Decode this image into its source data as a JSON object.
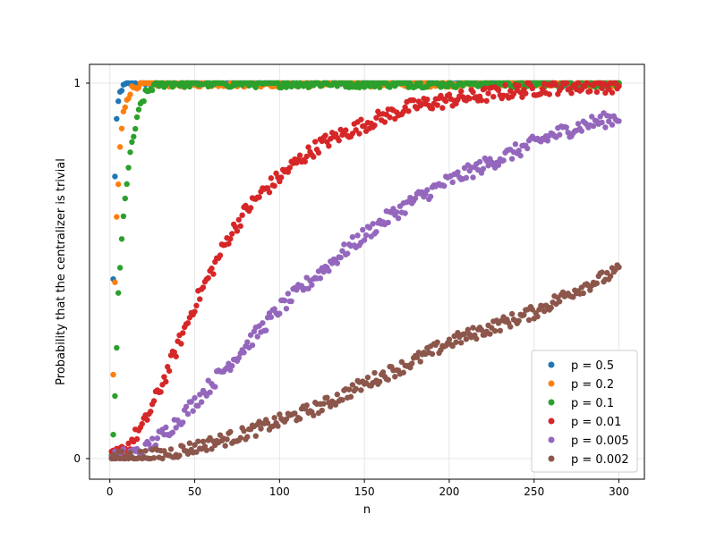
{
  "chart_data": {
    "type": "scatter",
    "title": "",
    "xlabel": "n",
    "ylabel": "Probability that the centralizer is trivial",
    "xlim": [
      -12,
      315
    ],
    "ylim": [
      -0.055,
      1.05
    ],
    "xticks": [
      0,
      50,
      100,
      150,
      200,
      250,
      300
    ],
    "yticks": [
      0,
      1
    ],
    "grid": true,
    "legend_position": "lower-right",
    "n_range": [
      1,
      300
    ],
    "series": [
      {
        "name": "p = 0.5",
        "color": "#1f77b4",
        "curve": [
          [
            1,
            0
          ],
          [
            2,
            0.48
          ],
          [
            3,
            0.75
          ],
          [
            4,
            0.9
          ],
          [
            5,
            0.95
          ],
          [
            6,
            0.975
          ],
          [
            8,
            0.992
          ],
          [
            10,
            1
          ],
          [
            300,
            1
          ]
        ],
        "noise": 0.005
      },
      {
        "name": "p = 0.2",
        "color": "#ff7f0e",
        "curve": [
          [
            1,
            0
          ],
          [
            2,
            0.22
          ],
          [
            3,
            0.47
          ],
          [
            4,
            0.64
          ],
          [
            5,
            0.73
          ],
          [
            6,
            0.83
          ],
          [
            8,
            0.92
          ],
          [
            10,
            0.96
          ],
          [
            13,
            0.985
          ],
          [
            16,
            0.995
          ],
          [
            20,
            1
          ],
          [
            300,
            1
          ]
        ],
        "noise": 0.01
      },
      {
        "name": "p = 0.1",
        "color": "#2ca02c",
        "curve": [
          [
            1,
            0
          ],
          [
            2,
            0.06
          ],
          [
            3,
            0.17
          ],
          [
            4,
            0.3
          ],
          [
            5,
            0.43
          ],
          [
            7,
            0.58
          ],
          [
            9,
            0.7
          ],
          [
            11,
            0.77
          ],
          [
            13,
            0.84
          ],
          [
            15,
            0.88
          ],
          [
            18,
            0.94
          ],
          [
            21,
            0.97
          ],
          [
            25,
            0.99
          ],
          [
            30,
            1
          ],
          [
            300,
            1
          ]
        ],
        "noise": 0.012
      },
      {
        "name": "p = 0.01",
        "color": "#d62728",
        "curve": [
          [
            1,
            0
          ],
          [
            10,
            0.03
          ],
          [
            20,
            0.09
          ],
          [
            30,
            0.19
          ],
          [
            40,
            0.3
          ],
          [
            50,
            0.41
          ],
          [
            60,
            0.5
          ],
          [
            70,
            0.59
          ],
          [
            80,
            0.66
          ],
          [
            90,
            0.71
          ],
          [
            100,
            0.75
          ],
          [
            110,
            0.79
          ],
          [
            125,
            0.84
          ],
          [
            140,
            0.87
          ],
          [
            160,
            0.91
          ],
          [
            180,
            0.94
          ],
          [
            200,
            0.955
          ],
          [
            230,
            0.975
          ],
          [
            260,
            0.99
          ],
          [
            300,
            0.995
          ]
        ],
        "noise": 0.02
      },
      {
        "name": "p = 0.005",
        "color": "#9467bd",
        "curve": [
          [
            1,
            0
          ],
          [
            20,
            0.02
          ],
          [
            40,
            0.1
          ],
          [
            60,
            0.2
          ],
          [
            80,
            0.3
          ],
          [
            100,
            0.4
          ],
          [
            120,
            0.48
          ],
          [
            140,
            0.56
          ],
          [
            160,
            0.63
          ],
          [
            180,
            0.69
          ],
          [
            200,
            0.74
          ],
          [
            220,
            0.78
          ],
          [
            240,
            0.82
          ],
          [
            260,
            0.86
          ],
          [
            280,
            0.89
          ],
          [
            300,
            0.91
          ]
        ],
        "noise": 0.02
      },
      {
        "name": "p = 0.002",
        "color": "#8c564b",
        "curve": [
          [
            1,
            0
          ],
          [
            30,
            0.01
          ],
          [
            50,
            0.03
          ],
          [
            75,
            0.06
          ],
          [
            100,
            0.1
          ],
          [
            125,
            0.14
          ],
          [
            150,
            0.2
          ],
          [
            175,
            0.25
          ],
          [
            200,
            0.31
          ],
          [
            225,
            0.35
          ],
          [
            250,
            0.39
          ],
          [
            275,
            0.45
          ],
          [
            300,
            0.5
          ]
        ],
        "noise": 0.018
      }
    ]
  }
}
